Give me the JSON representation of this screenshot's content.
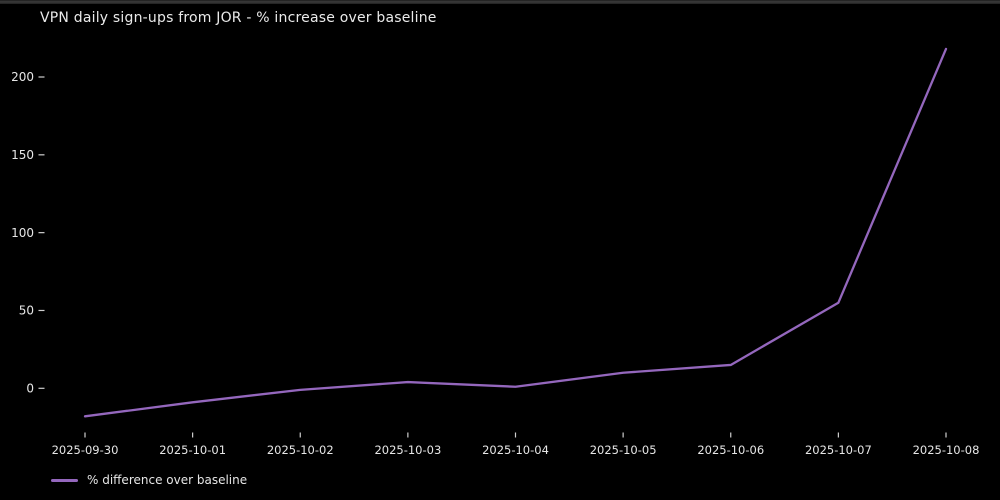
{
  "chart_data": {
    "type": "line",
    "title": "VPN daily sign-ups from JOR - % increase over baseline",
    "categories": [
      "2025-09-30",
      "2025-10-01",
      "2025-10-02",
      "2025-10-03",
      "2025-10-04",
      "2025-10-05",
      "2025-10-06",
      "2025-10-07",
      "2025-10-08"
    ],
    "series": [
      {
        "name": "% difference over baseline",
        "color": "#9467bd",
        "values": [
          -18,
          -9,
          -1,
          4,
          1,
          10,
          15,
          55,
          218
        ]
      }
    ],
    "xlabel": "",
    "ylabel": "",
    "yticks": [
      0,
      50,
      100,
      150,
      200
    ],
    "ylim": [
      -30,
      235
    ],
    "grid": false,
    "spines": false,
    "legend_position": "lower-left",
    "background_color": "#000000",
    "text_color": "#e6e6e6",
    "tick_color": "#cfcfcf"
  }
}
